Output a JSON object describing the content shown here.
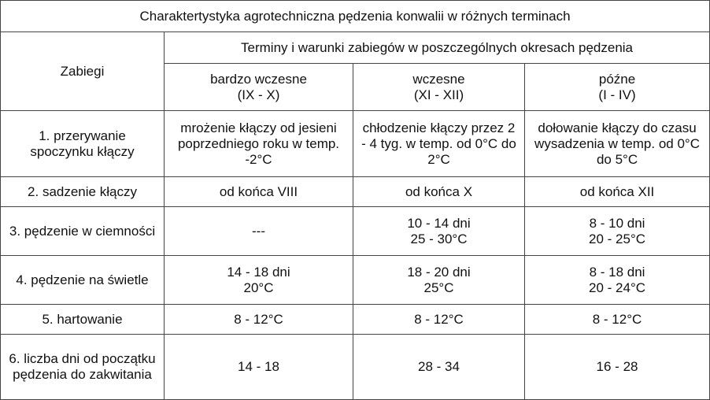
{
  "title": "Charaktertystyka agrotechniczna pędzenia konwalii w różnych terminach",
  "header": {
    "procedures_label": "Zabiegi",
    "terms_group_label": "Terminy i warunki zabiegów w poszczególnych okresach pędzenia",
    "columns": [
      {
        "name": "bardzo wczesne",
        "period": "(IX - X)"
      },
      {
        "name": "wczesne",
        "period": "(XI - XII)"
      },
      {
        "name": "późne",
        "period": "(I - IV)"
      }
    ]
  },
  "rows": [
    {
      "procedure": "1. przerywanie spoczynku kłączy",
      "cells": [
        "mrożenie kłączy od jesieni poprzedniego roku w temp. -2°C",
        "chłodzenie kłączy przez 2 - 4 tyg. w temp. od 0°C do 2°C",
        "dołowanie kłączy do czasu wysadzenia w temp. od 0°C do 5°C"
      ]
    },
    {
      "procedure": "2. sadzenie kłączy",
      "cells": [
        "od końca VIII",
        "od końca X",
        "od końca XII"
      ]
    },
    {
      "procedure": "3. pędzenie w ciemności",
      "cells": [
        {
          "line1": "---",
          "line2": ""
        },
        {
          "line1": "10 - 14 dni",
          "line2": "25 - 30°C"
        },
        {
          "line1": "8 - 10 dni",
          "line2": "20 - 25°C"
        }
      ]
    },
    {
      "procedure": "4. pędzenie na świetle",
      "cells": [
        {
          "line1": "14 - 18 dni",
          "line2": "20°C"
        },
        {
          "line1": "18 - 20 dni",
          "line2": "25°C"
        },
        {
          "line1": "8 - 18 dni",
          "line2": "20 - 24°C"
        }
      ]
    },
    {
      "procedure": "5. hartowanie",
      "cells": [
        "8 - 12°C",
        "8 - 12°C",
        "8 - 12°C"
      ]
    },
    {
      "procedure": "6. liczba dni od początku pędzenia do zakwitania",
      "cells": [
        "14 - 18",
        "28 - 34",
        "16 - 28"
      ]
    }
  ]
}
